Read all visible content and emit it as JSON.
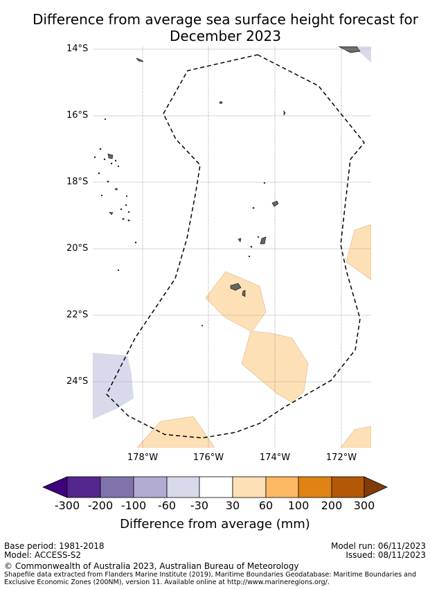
{
  "title": {
    "line1": "Difference from average sea surface height forecast for",
    "line2": "December 2023"
  },
  "map": {
    "lat_ticks": [
      "14°S",
      "16°S",
      "18°S",
      "20°S",
      "22°S",
      "24°S"
    ],
    "lon_ticks": [
      "178°W",
      "176°W",
      "174°W",
      "172°W"
    ],
    "land_color": "#666666",
    "eez_boundary_style": "dashed"
  },
  "colorbar": {
    "tick_labels": [
      "-300",
      "-200",
      "-100",
      "-60",
      "-30",
      "30",
      "60",
      "100",
      "200",
      "300"
    ],
    "colors": [
      "#3f007d",
      "#54278f",
      "#8073ac",
      "#b2abd2",
      "#d8daeb",
      "#ffffff",
      "#fee0b6",
      "#fdb863",
      "#e08214",
      "#b35806",
      "#7f3b08"
    ],
    "title": "Difference from average (mm)"
  },
  "footer": {
    "base_period": "Base period: 1981-2018",
    "model": "Model: ACCESS-S2",
    "model_run": "Model run: 06/11/2023",
    "issued": "Issued: 08/11/2023",
    "copyright": "© Commonwealth of Australia 2023, Australian Bureau of Meteorology",
    "shapefile_line1": "Shapefile data extracted from Flanders Marine Institute (2019), Maritime Boundaries Geodatabase: Maritime Boundaries and",
    "shapefile_line2": "Exclusive Economic Zones (200NM), version 11. Available online at http://www.marineregions.org/."
  }
}
